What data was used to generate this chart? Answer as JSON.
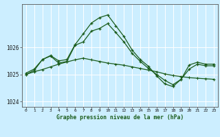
{
  "title": "Graphe pression niveau de la mer (hPa)",
  "bg_color": "#cceeff",
  "grid_color": "#ffffff",
  "line_color": "#1a5c1a",
  "xlim": [
    -0.5,
    23.5
  ],
  "ylim": [
    1023.8,
    1027.6
  ],
  "yticks": [
    1024,
    1025,
    1026
  ],
  "xticks": [
    0,
    1,
    2,
    3,
    4,
    5,
    6,
    7,
    8,
    9,
    10,
    11,
    12,
    13,
    14,
    15,
    16,
    17,
    18,
    19,
    20,
    21,
    22,
    23
  ],
  "series1_x": [
    0,
    1,
    2,
    3,
    4,
    5,
    6,
    7,
    8,
    9,
    10,
    11,
    12,
    13,
    14,
    15,
    16,
    17,
    18,
    19,
    20,
    21,
    22,
    23
  ],
  "series1_y": [
    1025.0,
    1025.1,
    1025.18,
    1025.28,
    1025.38,
    1025.46,
    1025.54,
    1025.6,
    1025.54,
    1025.48,
    1025.42,
    1025.38,
    1025.34,
    1025.28,
    1025.22,
    1025.16,
    1025.1,
    1025.02,
    1024.96,
    1024.92,
    1024.88,
    1024.86,
    1024.84,
    1024.82
  ],
  "series2_x": [
    0,
    1,
    2,
    3,
    4,
    5,
    6,
    7,
    8,
    9,
    10,
    11,
    12,
    13,
    14,
    15,
    16,
    17,
    18,
    19,
    20,
    21,
    22,
    23
  ],
  "series2_y": [
    1025.05,
    1025.2,
    1025.55,
    1025.7,
    1025.5,
    1025.55,
    1026.1,
    1026.5,
    1026.9,
    1027.1,
    1027.2,
    1026.8,
    1026.4,
    1025.9,
    1025.55,
    1025.3,
    1024.95,
    1024.65,
    1024.55,
    1024.82,
    1025.35,
    1025.45,
    1025.38,
    1025.38
  ],
  "series3_x": [
    0,
    1,
    2,
    3,
    4,
    5,
    6,
    7,
    8,
    9,
    10,
    11,
    12,
    13,
    14,
    15,
    16,
    17,
    18,
    19,
    20,
    21,
    22,
    23
  ],
  "series3_y": [
    1025.0,
    1025.15,
    1025.55,
    1025.68,
    1025.42,
    1025.48,
    1026.08,
    1026.2,
    1026.6,
    1026.7,
    1026.88,
    1026.55,
    1026.2,
    1025.78,
    1025.48,
    1025.22,
    1025.0,
    1024.78,
    1024.62,
    1024.82,
    1025.2,
    1025.38,
    1025.32,
    1025.32
  ]
}
